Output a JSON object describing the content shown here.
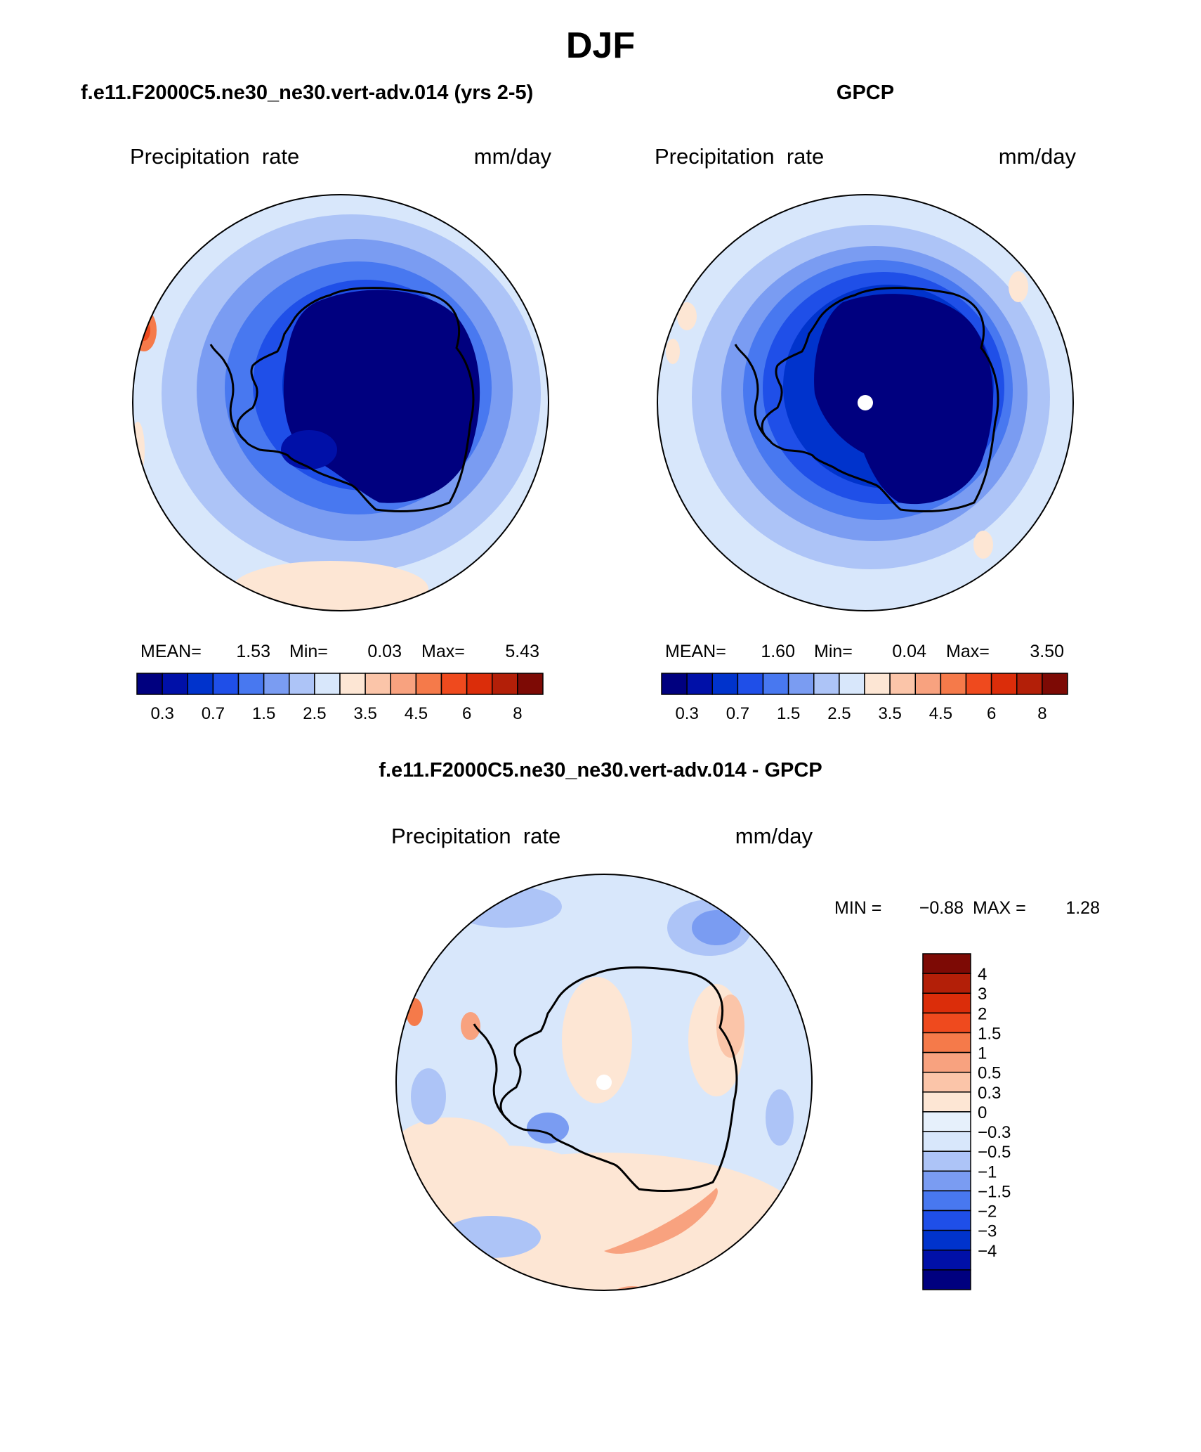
{
  "title": "DJF",
  "panels": [
    {
      "id": "model",
      "title": "f.e11.F2000C5.ne30_ne30.vert-adv.014 (yrs 2-5)",
      "field_label": "Precipitation  rate",
      "units": "mm/day",
      "stats": {
        "mean_label": "MEAN=",
        "mean": "1.53",
        "min_label": "Min=",
        "min": "0.03",
        "max_label": "Max=",
        "max": "5.43"
      },
      "colorbar_ticks": [
        "0.3",
        "0.7",
        "1.5",
        "2.5",
        "3.5",
        "4.5",
        "6",
        "8"
      ]
    },
    {
      "id": "obs",
      "title": "GPCP",
      "field_label": "Precipitation  rate",
      "units": "mm/day",
      "stats": {
        "mean_label": "MEAN=",
        "mean": "1.60",
        "min_label": "Min=",
        "min": "0.04",
        "max_label": "Max=",
        "max": "3.50"
      },
      "colorbar_ticks": [
        "0.3",
        "0.7",
        "1.5",
        "2.5",
        "3.5",
        "4.5",
        "6",
        "8"
      ]
    }
  ],
  "diff": {
    "title": "f.e11.F2000C5.ne30_ne30.vert-adv.014 - GPCP",
    "field_label": "Precipitation  rate",
    "units": "mm/day",
    "min_label": "MIN =",
    "min": "−0.88",
    "max_label": "MAX =",
    "max": "1.28",
    "colorbar_ticks": [
      "4",
      "3",
      "2",
      "1.5",
      "1",
      "0.5",
      "0.3",
      "0",
      "−0.3",
      "−0.5",
      "−1",
      "−1.5",
      "−2",
      "−3",
      "−4"
    ]
  },
  "palette": {
    "abs": [
      "#00007f",
      "#0010a8",
      "#0033cc",
      "#1f4fe8",
      "#4878f0",
      "#7a9cf2",
      "#adc4f7",
      "#d8e7fb",
      "#fde6d4",
      "#fbc5a9",
      "#f8a27f",
      "#f57a4a",
      "#ef4a1e",
      "#db2d0a",
      "#b31f08",
      "#7d0a05"
    ],
    "diff": [
      "#7d0a05",
      "#b31f08",
      "#db2d0a",
      "#ef4a1e",
      "#f57a4a",
      "#f8a27f",
      "#fbc5a9",
      "#fde6d4",
      "#e6f0fb",
      "#d8e7fb",
      "#adc4f7",
      "#7a9cf2",
      "#4878f0",
      "#1f4fe8",
      "#0033cc",
      "#0010a8",
      "#00007f"
    ]
  }
}
